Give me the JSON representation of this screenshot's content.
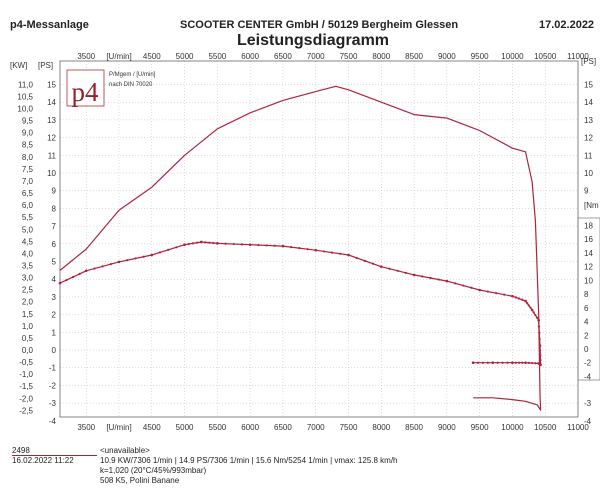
{
  "header": {
    "left": "p4-Messanlage",
    "center": "SCOOTER CENTER GmbH / 50129 Bergheim Glessen",
    "date": "17.02.2022",
    "title": "Leistungsdiagramm"
  },
  "legend": {
    "logo_text": "p4",
    "line1": "P/Mgem / [U/min]",
    "line2": "nach DIN 70020"
  },
  "footer": {
    "run_id": "2498",
    "run_datetime": "16.02.2022  11:22",
    "name": "<unavailable>",
    "results": "10.9 KW/7306 1/min  |  14.9 PS/7306 1/min  |  15.6 Nm/5254 1/min  | vmax: 125.8 km/h",
    "correction": "k=1,020 (20°C/45%/993mbar)",
    "vehicle": "508 K5, Polini Banane"
  },
  "chart_data": {
    "type": "line",
    "title": "Leistungsdiagramm",
    "xlabel": "[U/min]",
    "x_ticks": [
      "3500",
      "[U/min]",
      "4500",
      "5000",
      "5500",
      "6000",
      "6500",
      "7000",
      "7500",
      "8000",
      "8500",
      "9000",
      "9500",
      "10000",
      "10500",
      "11000"
    ],
    "x_tick_values": [
      3500,
      4000,
      4500,
      5000,
      5500,
      6000,
      6500,
      7000,
      7500,
      8000,
      8500,
      9000,
      9500,
      10000,
      10500,
      11000
    ],
    "xlim": [
      3100,
      11000
    ],
    "axis_kw": {
      "label": "[KW]",
      "ticks": [
        "11,0",
        "10,5",
        "10,0",
        "9,5",
        "9,0",
        "8,5",
        "8,0",
        "7,5",
        "7,0",
        "6,5",
        "6,0",
        "5,5",
        "5,0",
        "4,5",
        "4,0",
        "3,5",
        "3,0",
        "2,5",
        "2,0",
        "1,5",
        "1,0",
        "0,5",
        "0,0",
        "-0,5",
        "-1,0",
        "-1,5",
        "-2,0",
        "-2,5"
      ],
      "values": [
        11,
        10.5,
        10,
        9.5,
        9,
        8.5,
        8,
        7.5,
        7,
        6.5,
        6,
        5.5,
        5,
        4.5,
        4,
        3.5,
        3,
        2.5,
        2,
        1.5,
        1,
        0.5,
        0,
        -0.5,
        -1,
        -1.5,
        -2,
        -2.5
      ]
    },
    "axis_ps_left": {
      "label": "[PS]",
      "ticks": [
        "15",
        "14",
        "13",
        "12",
        "11",
        "10",
        "9",
        "8",
        "7",
        "6",
        "5",
        "4",
        "3",
        "2",
        "1",
        "0",
        "-1",
        "-2",
        "-3",
        "-4"
      ],
      "values": [
        15,
        14,
        13,
        12,
        11,
        10,
        9,
        8,
        7,
        6,
        5,
        4,
        3,
        2,
        1,
        0,
        -1,
        -2,
        -3,
        -4
      ]
    },
    "axis_ps_right": {
      "label": "[PS]",
      "ticks": [
        "15",
        "14",
        "13",
        "12",
        "11",
        "10",
        "9",
        "-3",
        "-4"
      ],
      "values": [
        15,
        14,
        13,
        12,
        11,
        10,
        9,
        -3,
        -4
      ]
    },
    "axis_nm": {
      "label": "[Nm",
      "ticks": [
        "18",
        "16",
        "14",
        "12",
        "10",
        "8",
        "6",
        "4",
        "2",
        "0",
        "-2",
        "-4"
      ],
      "values": [
        18,
        16,
        14,
        12,
        10,
        8,
        6,
        4,
        2,
        0,
        -2,
        -4
      ]
    },
    "ylim_ps": [
      -4,
      15.5
    ],
    "grid": true,
    "series": [
      {
        "name": "Leistung [PS]",
        "unit": "PS",
        "color": "#b0223c",
        "markers": false,
        "x": [
          3100,
          3500,
          4000,
          4500,
          5000,
          5500,
          6000,
          6500,
          7000,
          7306,
          7500,
          8000,
          8500,
          9000,
          9500,
          10000,
          10200,
          10300,
          10350,
          10400,
          10420,
          10430,
          10380,
          10200,
          10000,
          9700,
          9400
        ],
        "y": [
          4.5,
          5.7,
          7.9,
          9.2,
          11.0,
          12.5,
          13.4,
          14.1,
          14.6,
          14.9,
          14.7,
          14.0,
          13.3,
          13.1,
          12.4,
          11.4,
          11.2,
          9.5,
          7.3,
          2.0,
          -2.5,
          -3.4,
          -3.1,
          -2.9,
          -2.8,
          -2.7,
          -2.7
        ]
      },
      {
        "name": "Drehmoment [Nm]",
        "unit": "Nm",
        "color": "#b0223c",
        "markers": true,
        "x": [
          3100,
          3500,
          4000,
          4500,
          5000,
          5254,
          5500,
          6000,
          6500,
          7000,
          7500,
          8000,
          8500,
          9000,
          9500,
          10000,
          10200,
          10300,
          10400,
          10420,
          10430,
          10400,
          10200,
          10000,
          9700,
          9400
        ],
        "y": [
          9.6,
          11.4,
          12.7,
          13.7,
          15.2,
          15.6,
          15.4,
          15.2,
          15.0,
          14.4,
          13.7,
          12.0,
          10.8,
          9.9,
          8.6,
          7.7,
          7.0,
          5.7,
          4.2,
          0.5,
          -2.3,
          -2.1,
          -2.0,
          -2.0,
          -2.0,
          -2.0
        ]
      }
    ]
  }
}
